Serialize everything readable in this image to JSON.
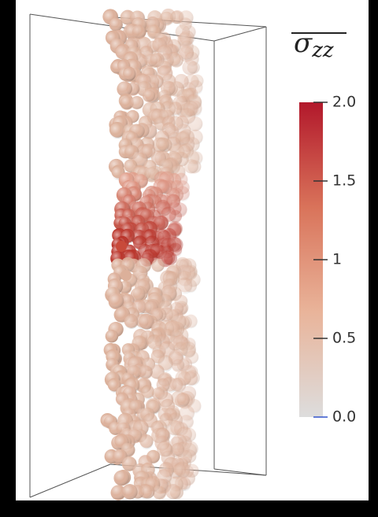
{
  "colorbar": {
    "title": {
      "symbol": "σ",
      "subscript": "zz"
    },
    "lim": [
      0,
      2
    ],
    "ticks": [
      {
        "value": 2,
        "label": "2.0"
      },
      1.5,
      1,
      0.5,
      {
        "value": 0,
        "label": "0.0"
      }
    ],
    "colors": [
      "#dddddd",
      "#e9b49a",
      "#d9735a",
      "#b2182b"
    ]
  }
}
